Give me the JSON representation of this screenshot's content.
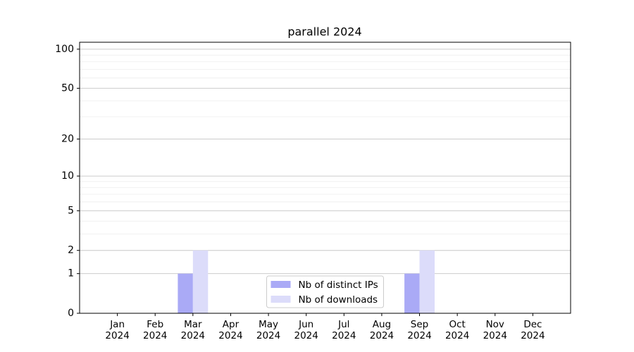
{
  "chart_data": {
    "type": "bar",
    "title": "parallel 2024",
    "categories": [
      "Jan 2024",
      "Feb 2024",
      "Mar 2024",
      "Apr 2024",
      "May 2024",
      "Jun 2024",
      "Jul 2024",
      "Aug 2024",
      "Sep 2024",
      "Oct 2024",
      "Nov 2024",
      "Dec 2024"
    ],
    "series": [
      {
        "name": "Nb of distinct IPs",
        "color": "#aaaaf6",
        "values": [
          0,
          0,
          1,
          0,
          0,
          0,
          0,
          0,
          1,
          0,
          0,
          0
        ]
      },
      {
        "name": "Nb of downloads",
        "color": "#dcdcfa",
        "values": [
          0,
          0,
          2,
          0,
          0,
          0,
          0,
          0,
          2,
          0,
          0,
          0
        ]
      }
    ],
    "yscale": "log1p",
    "ylim": [
      0,
      113
    ],
    "yticks": [
      0,
      1,
      2,
      5,
      10,
      20,
      50,
      100
    ],
    "minor_grid": [
      2,
      3,
      4,
      5,
      6,
      7,
      8,
      9,
      20,
      30,
      40,
      50,
      60,
      70,
      80,
      90
    ],
    "grid": true,
    "legend": "lower center"
  }
}
